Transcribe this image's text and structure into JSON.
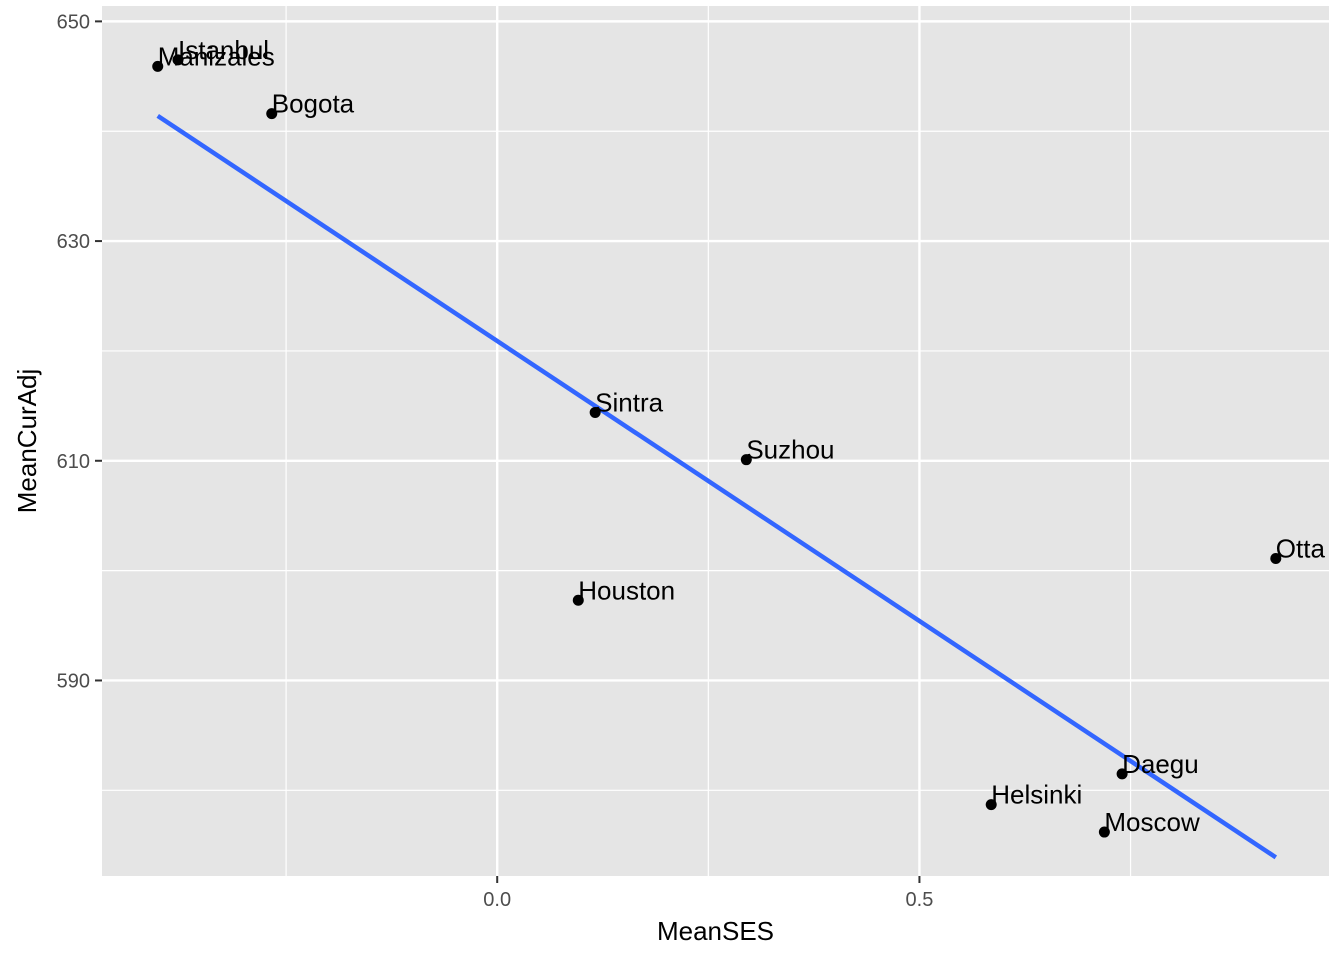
{
  "chart_data": {
    "type": "scatter",
    "title": "",
    "xlabel": "MeanSES",
    "ylabel": "MeanCurAdj",
    "xlim": [
      -0.468,
      0.985
    ],
    "ylim": [
      572.2,
      651.4
    ],
    "x_ticks": [
      0.0,
      0.5
    ],
    "x_tick_labels": [
      "0.0",
      "0.5"
    ],
    "x_minor_ticks": [
      -0.25,
      0.25,
      0.75
    ],
    "y_ticks": [
      590,
      610,
      630,
      650
    ],
    "y_tick_labels": [
      "590",
      "610",
      "630",
      "650"
    ],
    "y_minor_ticks": [
      580,
      600,
      620,
      640
    ],
    "grid": true,
    "points": [
      {
        "label": "Istanbul",
        "x": -0.378,
        "y": 646.5
      },
      {
        "label": "Manizales",
        "x": -0.402,
        "y": 645.9
      },
      {
        "label": "Bogota",
        "x": -0.267,
        "y": 641.6
      },
      {
        "label": "Sintra",
        "x": 0.116,
        "y": 614.4
      },
      {
        "label": "Suzhou",
        "x": 0.295,
        "y": 610.1
      },
      {
        "label": "Otta",
        "x": 0.922,
        "y": 601.1
      },
      {
        "label": "Houston",
        "x": 0.096,
        "y": 597.3
      },
      {
        "label": "Daegu",
        "x": 0.74,
        "y": 581.5
      },
      {
        "label": "Helsinki",
        "x": 0.585,
        "y": 578.7
      },
      {
        "label": "Moscow",
        "x": 0.719,
        "y": 576.2
      }
    ],
    "trend_line": {
      "type": "linear",
      "color": "#3366FF",
      "x": [
        -0.402,
        0.922
      ],
      "y": [
        641.4,
        573.9
      ]
    },
    "colors": {
      "panel": "#E5E5E5",
      "grid": "#FFFFFF",
      "point": "#000000"
    }
  }
}
